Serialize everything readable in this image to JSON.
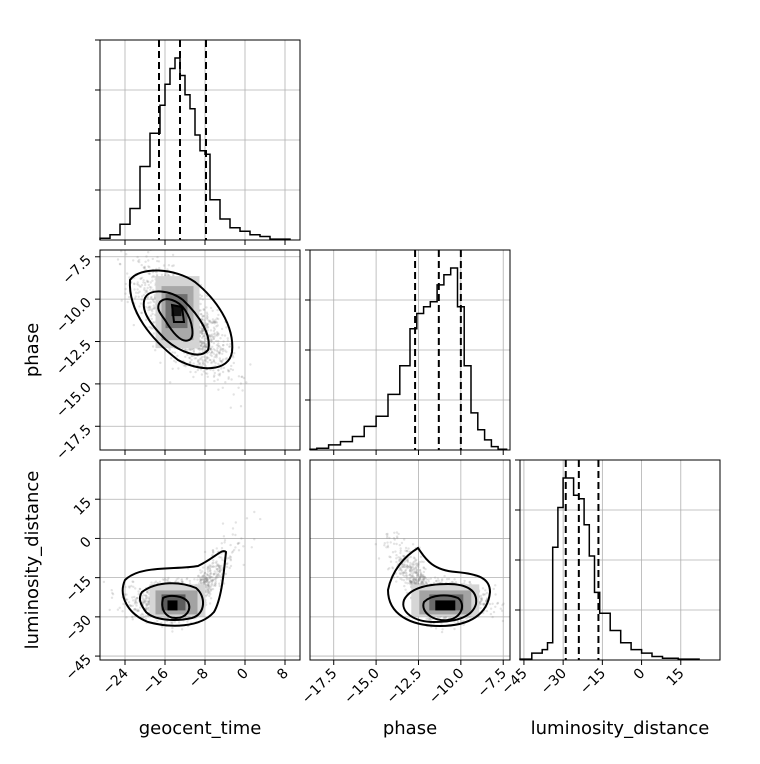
{
  "chart_data": {
    "type": "corner",
    "parameters": [
      "geocent_time",
      "phase",
      "luminosity_distance"
    ],
    "axis_labels": {
      "x": [
        "geocent_time",
        "phase",
        "luminosity_distance"
      ],
      "y_row2": "phase",
      "y_row3": "luminosity_distance"
    },
    "ranges": {
      "geocent_time": [
        -29.0,
        11.0
      ],
      "phase": [
        -18.9,
        -7.1
      ],
      "luminosity_distance": [
        -46.5,
        30.0
      ]
    },
    "ticks": {
      "geocent_time": [
        -24,
        -16,
        -8,
        0,
        8
      ],
      "phase_x": [
        -17.5,
        -15.0,
        -12.5,
        -10.0,
        -7.5
      ],
      "phase_y": [
        -7.5,
        -10.0,
        -12.5,
        -15.0,
        -17.5
      ],
      "luminosity_distance_x": [
        -45,
        -30,
        -15,
        0,
        15
      ],
      "luminosity_distance_y": [
        15,
        0,
        -15,
        -30,
        -45
      ]
    },
    "tick_labels": {
      "geocent_time": [
        "−24",
        "−16",
        "−8",
        "0",
        "8"
      ],
      "phase_x": [
        "−17.5",
        "−15.0",
        "−12.5",
        "−10.0",
        "−7.5"
      ],
      "phase_y": [
        "−7.5",
        "−10.0",
        "−12.5",
        "−15.0",
        "−17.5"
      ],
      "luminosity_distance_x": [
        "−45",
        "−30",
        "−15",
        "0",
        "15"
      ],
      "luminosity_distance_y": [
        "15",
        "0",
        "−15",
        "−30",
        "−45"
      ]
    },
    "quantiles": {
      "geocent_time": [
        -17.2,
        -13.0,
        -7.8
      ],
      "phase": [
        -12.7,
        -11.3,
        -10.0
      ],
      "luminosity_distance": [
        -29.0,
        -24.0,
        -16.5
      ]
    },
    "histograms": {
      "geocent_time": {
        "edges": [
          -29.0,
          -27.0,
          -25.0,
          -23.0,
          -21.0,
          -19.0,
          -17.0,
          -16.0,
          -15.0,
          -14.0,
          -13.0,
          -12.0,
          -11.0,
          -10.0,
          -9.0,
          -8.0,
          -7.0,
          -5.0,
          -3.0,
          -1.0,
          1.0,
          3.0,
          5.0,
          9.0
        ],
        "counts": [
          0.1,
          0.3,
          0.9,
          1.8,
          4.2,
          6.1,
          7.7,
          8.9,
          9.8,
          10.4,
          9.4,
          8.3,
          7.5,
          6.0,
          5.1,
          4.9,
          2.3,
          1.2,
          0.7,
          0.5,
          0.3,
          0.2,
          0.05
        ]
      },
      "phase": {
        "edges": [
          -18.9,
          -18.5,
          -17.8,
          -17.1,
          -16.4,
          -15.7,
          -15.0,
          -14.3,
          -13.6,
          -13.0,
          -12.6,
          -12.2,
          -11.8,
          -11.4,
          -11.0,
          -10.6,
          -10.2,
          -9.8,
          -9.4,
          -9.0,
          -8.6,
          -8.2,
          -7.8,
          -7.3
        ],
        "counts": [
          0.05,
          0.1,
          0.3,
          0.5,
          0.8,
          1.4,
          2.0,
          3.3,
          5.0,
          7.2,
          8.1,
          8.5,
          8.8,
          9.8,
          10.4,
          10.8,
          8.5,
          5.0,
          2.2,
          1.2,
          0.6,
          0.2,
          0.05
        ]
      },
      "luminosity_distance": {
        "edges": [
          -46.5,
          -42.0,
          -38.0,
          -36.0,
          -34.0,
          -32.0,
          -30.0,
          -28.0,
          -26.0,
          -24.0,
          -22.0,
          -20.0,
          -18.0,
          -16.0,
          -12.0,
          -8.0,
          -4.0,
          0.0,
          4.0,
          8.0,
          14.0,
          22.0
        ],
        "counts": [
          0.05,
          0.4,
          0.6,
          1.0,
          6.5,
          8.8,
          10.5,
          10.5,
          9.5,
          9.3,
          7.8,
          6.0,
          3.9,
          2.7,
          1.7,
          1.0,
          0.6,
          0.4,
          0.2,
          0.1,
          0.05
        ]
      }
    },
    "contour_levels": [
      0.5,
      1.0,
      1.5,
      2.0
    ],
    "scatter_color": "#808080",
    "line_color": "#000000",
    "grid": true
  }
}
